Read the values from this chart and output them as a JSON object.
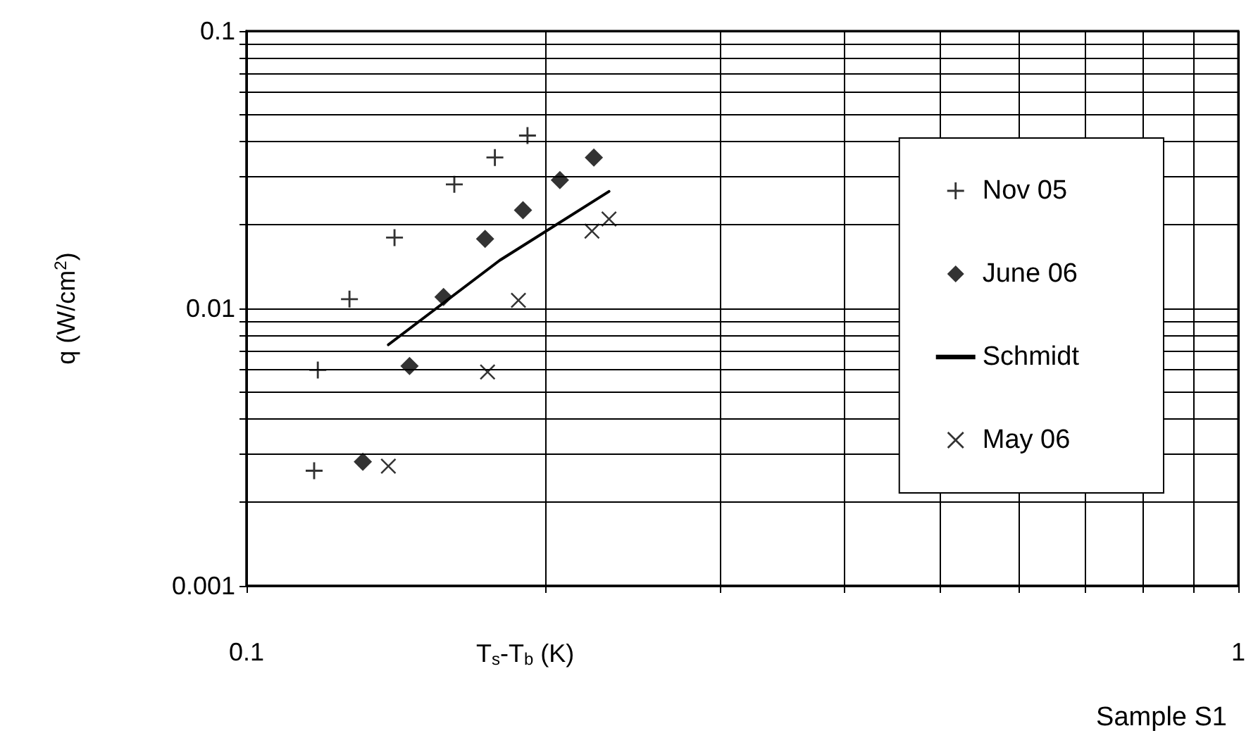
{
  "chart_data": {
    "type": "scatter",
    "xlabel": "T$_{s}$-T$_{b}$ (K)",
    "ylabel": "q (W/cm$^{2}$)",
    "log": "xy",
    "grid": true,
    "legend": "right",
    "xlim": [
      0.1,
      1
    ],
    "ylim": [
      0.001,
      0.1
    ],
    "xticks": [
      0.1,
      {
        "value": 0.2,
        "label": null
      },
      {
        "value": 0.3,
        "label": null
      },
      {
        "value": 0.4,
        "label": null
      },
      {
        "value": 0.5,
        "label": null
      },
      {
        "value": 0.6,
        "label": null
      },
      {
        "value": 0.7,
        "label": null
      },
      {
        "value": 0.8,
        "label": null
      },
      {
        "value": 0.9,
        "label": null
      },
      1
    ],
    "yticks": [
      0.001,
      {
        "value": 0.002,
        "label": null
      },
      {
        "value": 0.003,
        "label": null
      },
      {
        "value": 0.004,
        "label": null
      },
      {
        "value": 0.005,
        "label": null
      },
      {
        "value": 0.006,
        "label": null
      },
      {
        "value": 0.007,
        "label": null
      },
      {
        "value": 0.008,
        "label": null
      },
      {
        "value": 0.009,
        "label": null
      },
      0.01,
      {
        "value": 0.02,
        "label": null
      },
      {
        "value": 0.03,
        "label": null
      },
      {
        "value": 0.04,
        "label": null
      },
      {
        "value": 0.05,
        "label": null
      },
      {
        "value": 0.06,
        "label": null
      },
      {
        "value": 0.07,
        "label": null
      },
      {
        "value": 0.08,
        "label": null
      },
      {
        "value": 0.09,
        "label": null
      },
      0.1
    ],
    "annotations": [
      "Sample S1"
    ],
    "series": [
      {
        "name": "Nov 05",
        "color": "#000000",
        "marker": "plus",
        "x": [
          0.117,
          0.118,
          0.127,
          0.141,
          0.162,
          0.178,
          0.192
        ],
        "values": [
          0.0026,
          0.006,
          0.0108,
          0.018,
          0.028,
          0.035,
          0.042
        ]
      },
      {
        "name": "June 06",
        "color": "#000000",
        "marker": "diamond",
        "x": [
          0.131,
          0.146,
          0.158,
          0.174,
          0.19,
          0.207,
          0.224
        ],
        "values": [
          0.0028,
          0.0062,
          0.011,
          0.0178,
          0.0226,
          0.029,
          0.035
        ]
      },
      {
        "name": "Schmidt",
        "type": "line",
        "color": "#000000",
        "marker": "none",
        "line_style": "solid",
        "x": [
          0.139,
          0.18,
          0.232
        ],
        "values": [
          0.0074,
          0.0149,
          0.0264
        ]
      },
      {
        "name": "May 06",
        "color": "#000000",
        "marker": "cross",
        "x": [
          0.139,
          0.175,
          0.188,
          0.223,
          0.232
        ],
        "values": [
          0.0027,
          0.0059,
          0.0107,
          0.019,
          0.021
        ]
      }
    ]
  }
}
